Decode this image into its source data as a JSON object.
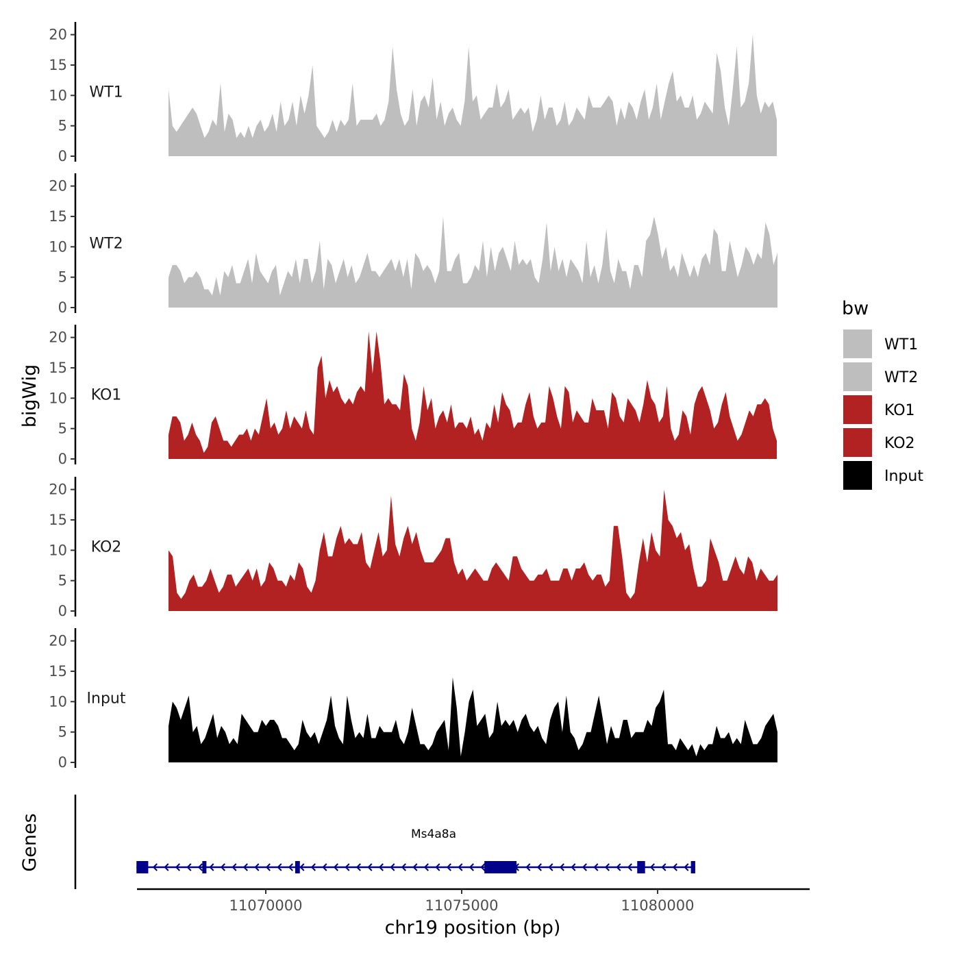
{
  "chart_data": {
    "type": "area",
    "ylabel": "bigWig",
    "xlabel": "chr19 position (bp)",
    "genes_label": "Genes",
    "ylim": [
      0,
      22
    ],
    "y_ticks": [
      "0",
      "5",
      "10",
      "15",
      "20"
    ],
    "x_range": [
      11066500,
      11084000
    ],
    "x_ticks": [
      {
        "value": 11070000,
        "label": "11070000"
      },
      {
        "value": 11075000,
        "label": "11075000"
      },
      {
        "value": 11080000,
        "label": "11080000"
      }
    ],
    "legend": {
      "title": "bw",
      "entries": [
        {
          "label": "WT1",
          "color": "#bebebe"
        },
        {
          "label": "WT2",
          "color": "#bebebe"
        },
        {
          "label": "KO1",
          "color": "#b22222"
        },
        {
          "label": "KO2",
          "color": "#b22222"
        },
        {
          "label": "Input",
          "color": "#000000"
        }
      ]
    },
    "series": [
      {
        "name": "WT1",
        "color": "#bebebe",
        "x_start": 11068850,
        "x_end": 11084400,
        "values": [
          11,
          5,
          4,
          5,
          6,
          7,
          8,
          7,
          5,
          3,
          4,
          6,
          5,
          12,
          4,
          7,
          6,
          3,
          4,
          3,
          5,
          3,
          5,
          6,
          4,
          5,
          7,
          4,
          9,
          5,
          6,
          9,
          5,
          10,
          7,
          10,
          15,
          5,
          4,
          3,
          4,
          6,
          4,
          6,
          5,
          6,
          12,
          5,
          6,
          6,
          6,
          6,
          7,
          5,
          6,
          9,
          18,
          11,
          7,
          5,
          6,
          11,
          5,
          9,
          10,
          8,
          13,
          6,
          9,
          5,
          7,
          8,
          6,
          5,
          9,
          18,
          9,
          10,
          6,
          7,
          8,
          8,
          12,
          8,
          9,
          11,
          6,
          7,
          8,
          7,
          8,
          4,
          6,
          10,
          6,
          8,
          8,
          5,
          6,
          9,
          5,
          6,
          8,
          7,
          6,
          10,
          8,
          8,
          8,
          9,
          10,
          9,
          5,
          8,
          6,
          9,
          8,
          6,
          9,
          11,
          6,
          8,
          12,
          6,
          9,
          12,
          14,
          9,
          10,
          8,
          8,
          10,
          6,
          7,
          9,
          8,
          7,
          17,
          14,
          8,
          5,
          11,
          18,
          8,
          9,
          12,
          20,
          10,
          7,
          9,
          8,
          9,
          6
        ]
      },
      {
        "name": "WT2",
        "color": "#bebebe",
        "x_start": 11068850,
        "x_end": 11084400,
        "values": [
          5,
          7,
          7,
          6,
          4,
          5,
          5,
          6,
          5,
          3,
          3,
          2,
          5,
          2,
          6,
          5,
          7,
          4,
          4,
          6,
          8,
          4,
          9,
          6,
          5,
          4,
          6,
          7,
          2,
          4,
          6,
          5,
          8,
          4,
          8,
          8,
          4,
          6,
          11,
          3,
          8,
          7,
          4,
          6,
          8,
          5,
          7,
          4,
          5,
          7,
          9,
          6,
          6,
          5,
          6,
          7,
          8,
          6,
          8,
          5,
          8,
          3,
          9,
          8,
          6,
          7,
          6,
          4,
          6,
          15,
          6,
          6,
          8,
          9,
          4,
          4,
          5,
          7,
          6,
          11,
          5,
          10,
          6,
          9,
          10,
          8,
          6,
          11,
          7,
          8,
          7,
          8,
          5,
          4,
          8,
          14,
          6,
          10,
          6,
          8,
          5,
          8,
          7,
          6,
          4,
          11,
          5,
          7,
          4,
          7,
          13,
          6,
          4,
          8,
          6,
          6,
          3,
          7,
          7,
          5,
          11,
          12,
          15,
          12,
          8,
          10,
          6,
          7,
          5,
          9,
          7,
          5,
          7,
          5,
          8,
          9,
          7,
          13,
          12,
          6,
          6,
          11,
          8,
          5,
          7,
          10,
          9,
          7,
          9,
          8,
          14,
          12,
          7,
          9
        ]
      },
      {
        "name": "KO1",
        "color": "#b22222",
        "x_start": 11068850,
        "x_end": 11084400,
        "values": [
          4,
          7,
          7,
          6,
          3,
          4,
          6,
          4,
          3,
          1,
          2,
          6,
          7,
          5,
          3,
          3,
          2,
          3,
          4,
          4,
          5,
          3,
          5,
          4,
          7,
          10,
          5,
          6,
          4,
          5,
          8,
          5,
          7,
          6,
          5,
          8,
          5,
          4,
          15,
          17,
          10,
          13,
          11,
          12,
          10,
          9,
          10,
          9,
          11,
          12,
          11,
          21,
          14,
          21,
          16,
          9,
          10,
          9,
          9,
          8,
          14,
          12,
          5,
          3,
          6,
          12,
          8,
          10,
          5,
          7,
          8,
          6,
          9,
          5,
          6,
          6,
          5,
          7,
          4,
          5,
          3,
          6,
          5,
          9,
          6,
          11,
          9,
          8,
          5,
          6,
          6,
          9,
          11,
          7,
          5,
          6,
          6,
          12,
          10,
          7,
          5,
          12,
          11,
          6,
          8,
          7,
          6,
          6,
          10,
          8,
          8,
          8,
          5,
          11,
          10,
          7,
          6,
          10,
          9,
          8,
          6,
          9,
          13,
          10,
          9,
          6,
          7,
          12,
          5,
          3,
          4,
          8,
          7,
          4,
          9,
          11,
          12,
          10,
          8,
          5,
          6,
          9,
          11,
          7,
          5,
          3,
          4,
          6,
          8,
          7,
          9,
          9,
          10,
          9,
          5,
          3
        ]
      },
      {
        "name": "KO2",
        "color": "#b22222",
        "x_start": 11068850,
        "x_end": 11084400,
        "values": [
          10,
          9,
          3,
          2,
          3,
          5,
          6,
          4,
          4,
          5,
          7,
          5,
          3,
          4,
          6,
          6,
          4,
          5,
          6,
          7,
          5,
          7,
          4,
          5,
          8,
          7,
          5,
          5,
          4,
          6,
          5,
          8,
          7,
          4,
          3,
          5,
          10,
          13,
          9,
          9,
          12,
          14,
          11,
          12,
          11,
          11,
          13,
          8,
          7,
          10,
          13,
          9,
          10,
          19,
          11,
          9,
          12,
          14,
          11,
          13,
          10,
          8,
          8,
          8,
          9,
          10,
          12,
          12,
          8,
          6,
          7,
          5,
          6,
          7,
          6,
          5,
          5,
          7,
          8,
          7,
          6,
          5,
          9,
          9,
          7,
          6,
          5,
          5,
          6,
          6,
          7,
          5,
          5,
          5,
          7,
          7,
          5,
          7,
          7,
          8,
          6,
          5,
          6,
          6,
          4,
          5,
          14,
          14,
          9,
          3,
          2,
          3,
          8,
          12,
          8,
          13,
          10,
          9,
          20,
          15,
          14,
          12,
          13,
          10,
          11,
          7,
          4,
          4,
          5,
          12,
          10,
          8,
          5,
          5,
          7,
          9,
          7,
          6,
          9,
          8,
          5,
          7,
          6,
          5,
          5,
          6
        ]
      },
      {
        "name": "Input",
        "color": "#000000",
        "x_start": 11068850,
        "x_end": 11084400,
        "values": [
          6,
          10,
          9,
          7,
          9,
          11,
          5,
          6,
          3,
          4,
          6,
          8,
          4,
          6,
          5,
          3,
          4,
          3,
          8,
          7,
          6,
          5,
          5,
          7,
          6,
          7,
          7,
          6,
          4,
          4,
          3,
          2,
          3,
          7,
          5,
          4,
          5,
          3,
          5,
          7,
          11,
          6,
          4,
          3,
          11,
          7,
          4,
          5,
          4,
          8,
          4,
          4,
          6,
          5,
          5,
          5,
          7,
          4,
          3,
          5,
          9,
          6,
          3,
          3,
          2,
          3,
          5,
          6,
          7,
          2,
          14,
          9,
          1,
          5,
          10,
          12,
          6,
          7,
          8,
          4,
          5,
          10,
          6,
          7,
          6,
          7,
          5,
          7,
          8,
          6,
          5,
          6,
          4,
          3,
          7,
          9,
          10,
          5,
          11,
          5,
          4,
          2,
          3,
          5,
          5,
          8,
          11,
          7,
          3,
          6,
          4,
          4,
          7,
          7,
          4,
          5,
          5,
          5,
          7,
          6,
          9,
          10,
          12,
          3,
          3,
          2,
          4,
          3,
          2,
          3,
          1,
          3,
          2,
          3,
          3,
          6,
          4,
          4,
          5,
          3,
          4,
          3,
          7,
          5,
          3,
          3,
          4,
          6,
          7,
          8,
          5
        ]
      }
    ],
    "gene": {
      "name": "Ms4a8a",
      "color": "#00008b",
      "start": 11066700,
      "end": 11080950,
      "strand": "-",
      "exons": [
        [
          11066700,
          11067000
        ],
        [
          11068380,
          11068480
        ],
        [
          11070750,
          11070870
        ],
        [
          11075580,
          11076400
        ],
        [
          11079480,
          11079680
        ],
        [
          11080850,
          11080960
        ]
      ]
    }
  }
}
